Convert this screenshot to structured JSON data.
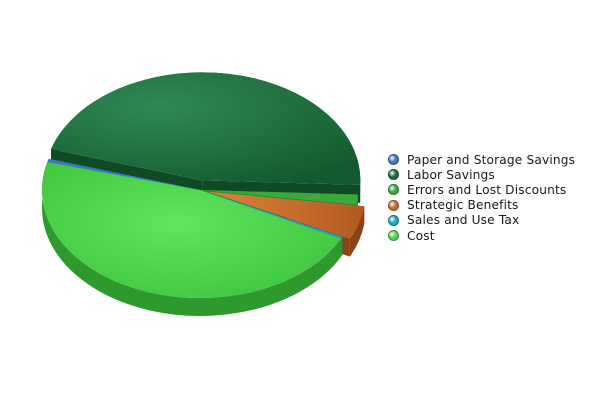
{
  "chart_data": {
    "type": "pie",
    "title": "",
    "categories": [
      "Paper and Storage Savings",
      "Labor Savings",
      "Errors and Lost Discounts",
      "Strategic Benefits",
      "Sales and Use Tax",
      "Cost"
    ],
    "values": [
      0.5,
      46,
      1.5,
      5,
      0.3,
      46.7
    ],
    "colors": [
      "#3b78c4",
      "#1f6b3c",
      "#3aa93a",
      "#c96a2a",
      "#1aa6c8",
      "#4ed64e"
    ],
    "legend_position": "right",
    "style": "3d-exploded"
  }
}
